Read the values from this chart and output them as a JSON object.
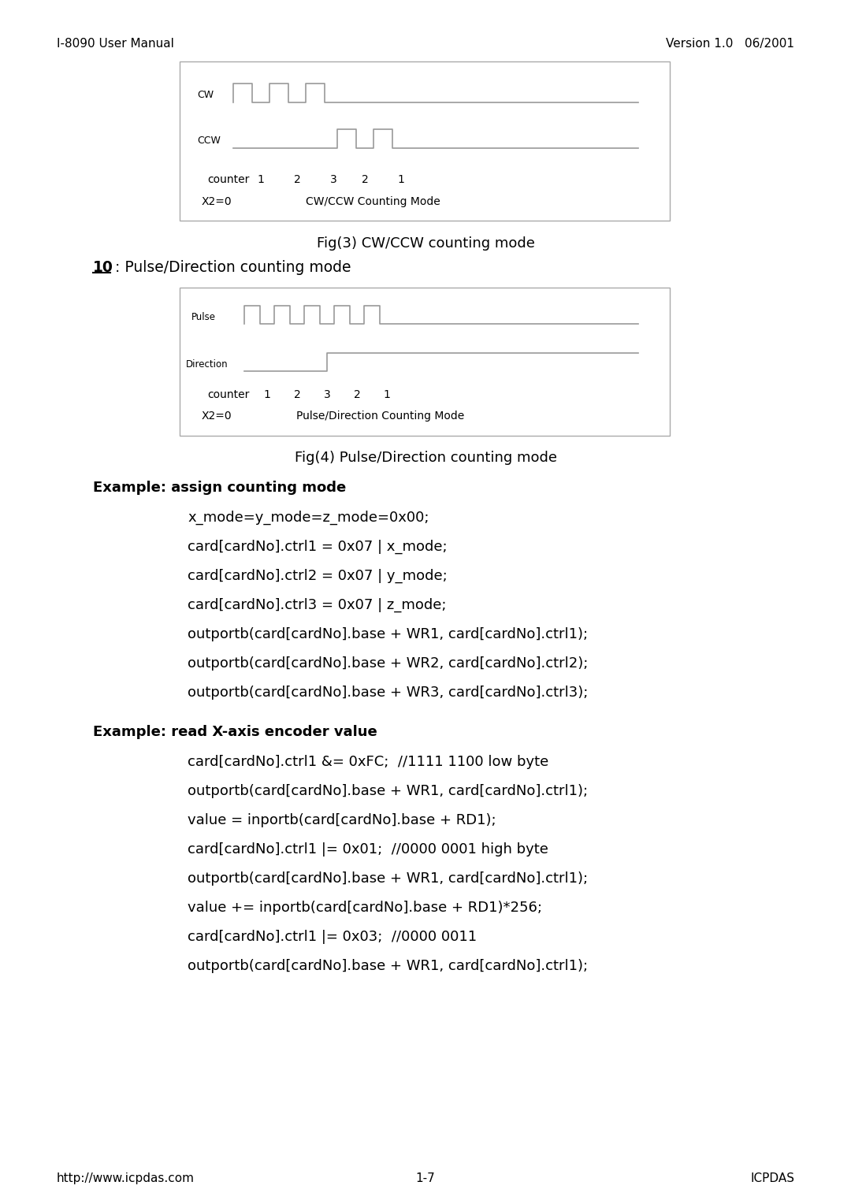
{
  "header_left": "I-8090 User Manual",
  "header_right": "Version 1.0   06/2001",
  "footer_left": "http://www.icpdas.com",
  "footer_center": "1-7",
  "footer_right": "ICPDAS",
  "fig3_title": "Fig(3) CW/CCW counting mode",
  "fig4_title": "Fig(4) Pulse/Direction counting mode",
  "section_label": "10",
  "section_text": " : Pulse/Direction counting mode",
  "example1_header": "Example: assign counting mode",
  "example1_lines": [
    "x_mode=y_mode=z_mode=0x00;",
    "card[cardNo].ctrl1 = 0x07 | x_mode;",
    "card[cardNo].ctrl2 = 0x07 | y_mode;",
    "card[cardNo].ctrl3 = 0x07 | z_mode;",
    "outportb(card[cardNo].base + WR1, card[cardNo].ctrl1);",
    "outportb(card[cardNo].base + WR2, card[cardNo].ctrl2);",
    "outportb(card[cardNo].base + WR3, card[cardNo].ctrl3);"
  ],
  "example2_header": "Example: read X-axis encoder value",
  "example2_lines": [
    "card[cardNo].ctrl1 &= 0xFC;  //1111 1100 low byte",
    "outportb(card[cardNo].base + WR1, card[cardNo].ctrl1);",
    "value = inportb(card[cardNo].base + RD1);",
    "card[cardNo].ctrl1 |= 0x01;  //0000 0001 high byte",
    "outportb(card[cardNo].base + WR1, card[cardNo].ctrl1);",
    "value += inportb(card[cardNo].base + RD1)*256;",
    "card[cardNo].ctrl1 |= 0x03;  //0000 0011",
    "outportb(card[cardNo].base + WR1, card[cardNo].ctrl1);"
  ],
  "bg_color": "#ffffff",
  "text_color": "#000000",
  "signal_color": "#999999",
  "box_edge_color": "#aaaaaa"
}
